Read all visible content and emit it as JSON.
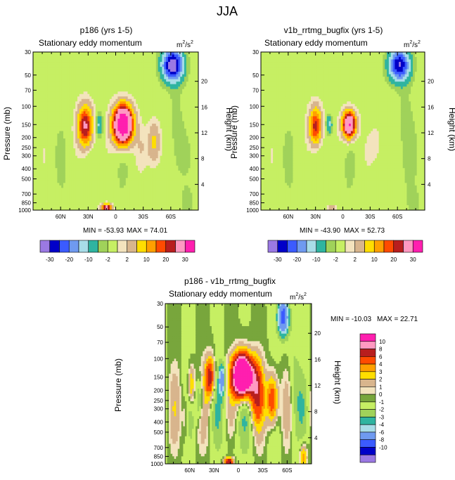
{
  "figure": {
    "title": "JJA"
  },
  "chart_data": [
    {
      "type": "heatmap",
      "title": "p186 (yrs 1-5)",
      "subtitle": "Stationary eddy momentum",
      "units": "m²/s²",
      "units_base": "m",
      "units_exp1": "2",
      "units_mid": "/s",
      "units_exp2": "2",
      "ylabel": "Pressure (mb)",
      "ylabel_right": "Height (km)",
      "xticks": [
        "60N",
        "30N",
        "0",
        "30S",
        "60S"
      ],
      "yticks": [
        "30",
        "50",
        "70",
        "100",
        "150",
        "200",
        "250",
        "300",
        "400",
        "500",
        "700",
        "850",
        "1000"
      ],
      "yticks_right": [
        "20",
        "16",
        "12",
        "8",
        "4"
      ],
      "min_label": "MIN = -53.93",
      "max_label": "MAX = 74.01",
      "colorbar_labels": [
        "-30",
        "-20",
        "-10",
        "-2",
        "2",
        "10",
        "20",
        "30"
      ],
      "features": [
        {
          "lat": -8,
          "p": 150,
          "sx": 7,
          "sy": 0.28,
          "v": 74
        },
        {
          "lat": 33,
          "p": 155,
          "sx": 6,
          "sy": 0.32,
          "v": 32
        },
        {
          "lat": 18,
          "p": 150,
          "sx": 3,
          "sy": 0.18,
          "v": -12
        },
        {
          "lat": -42,
          "p": 230,
          "sx": 5,
          "sy": 0.35,
          "v": 13
        },
        {
          "lat": -28,
          "p": 250,
          "sx": 4,
          "sy": 0.25,
          "v": 3
        },
        {
          "lat": -62,
          "p": 40,
          "sx": 8,
          "sy": 0.25,
          "v": -35
        },
        {
          "lat": -65,
          "p": 200,
          "sx": 6,
          "sy": 0.9,
          "v": -4
        },
        {
          "lat": 50,
          "p": 400,
          "sx": 10,
          "sy": 1.0,
          "v": -1.5
        },
        {
          "lat": 0,
          "p": 500,
          "sx": 12,
          "sy": 0.6,
          "v": -1.2
        },
        {
          "lat": 10,
          "p": 950,
          "sx": 4,
          "sy": 0.06,
          "v": 35
        },
        {
          "lat": -78,
          "p": 850,
          "sx": 4,
          "sy": 0.2,
          "v": -4
        }
      ]
    },
    {
      "type": "heatmap",
      "title": "v1b_rrtmg_bugfix (yrs 1-5)",
      "subtitle": "Stationary eddy momentum",
      "units": "m²/s²",
      "units_base": "m",
      "units_exp1": "2",
      "units_mid": "/s",
      "units_exp2": "2",
      "ylabel": "Pressure (mb)",
      "ylabel_right": "Height (km)",
      "xticks": [
        "60N",
        "30N",
        "0",
        "30S",
        "60S"
      ],
      "yticks": [
        "30",
        "50",
        "70",
        "100",
        "150",
        "200",
        "250",
        "300",
        "400",
        "500",
        "700",
        "850",
        "1000"
      ],
      "yticks_right": [
        "20",
        "16",
        "12",
        "8",
        "4"
      ],
      "min_label": "MIN = -43.90",
      "max_label": "MAX = 52.73",
      "colorbar_labels": [
        "-30",
        "-20",
        "-10",
        "-2",
        "2",
        "10",
        "20",
        "30"
      ],
      "features": [
        {
          "lat": -7,
          "p": 150,
          "sx": 5,
          "sy": 0.2,
          "v": 52
        },
        {
          "lat": 30,
          "p": 155,
          "sx": 5,
          "sy": 0.3,
          "v": 28
        },
        {
          "lat": 15,
          "p": 150,
          "sx": 2.5,
          "sy": 0.15,
          "v": -12
        },
        {
          "lat": -38,
          "p": 230,
          "sx": 5,
          "sy": 0.35,
          "v": 4
        },
        {
          "lat": -62,
          "p": 40,
          "sx": 8,
          "sy": 0.25,
          "v": -30
        },
        {
          "lat": -68,
          "p": 200,
          "sx": 6,
          "sy": 0.9,
          "v": -4
        },
        {
          "lat": 50,
          "p": 400,
          "sx": 10,
          "sy": 1.0,
          "v": -1.5
        },
        {
          "lat": 0,
          "p": 500,
          "sx": 12,
          "sy": 0.6,
          "v": -1.2
        },
        {
          "lat": 12,
          "p": 950,
          "sx": 4,
          "sy": 0.05,
          "v": 8
        },
        {
          "lat": -78,
          "p": 850,
          "sx": 4,
          "sy": 0.2,
          "v": -4
        }
      ]
    },
    {
      "type": "heatmap",
      "title": "p186 - v1b_rrtmg_bugfix",
      "subtitle": "Stationary eddy momentum",
      "units": "m²/s²",
      "units_base": "m",
      "units_exp1": "2",
      "units_mid": "/s",
      "units_exp2": "2",
      "ylabel": "Pressure (mb)",
      "ylabel_right": "Height (km)",
      "xticks": [
        "60N",
        "30N",
        "0",
        "30S",
        "60S"
      ],
      "yticks": [
        "30",
        "50",
        "70",
        "100",
        "150",
        "200",
        "250",
        "300",
        "400",
        "500",
        "700",
        "850",
        "1000"
      ],
      "yticks_right": [
        "20",
        "16",
        "12",
        "8",
        "4"
      ],
      "min_label": "MIN = -10.03",
      "max_label": "MAX = 22.71",
      "colorbar_labels": [
        "10",
        "8",
        "6",
        "4",
        "3",
        "2",
        "1",
        "0",
        "-1",
        "-2",
        "-3",
        "-4",
        "-6",
        "-8",
        "-10"
      ],
      "features": [
        {
          "lat": -5,
          "p": 145,
          "sx": 8,
          "sy": 0.3,
          "v": 22
        },
        {
          "lat": -22,
          "p": 200,
          "sx": 6,
          "sy": 0.45,
          "v": 6
        },
        {
          "lat": 35,
          "p": 150,
          "sx": 4,
          "sy": 0.3,
          "v": 7
        },
        {
          "lat": 20,
          "p": 160,
          "sx": 3,
          "sy": 0.25,
          "v": -5
        },
        {
          "lat": 58,
          "p": 180,
          "sx": 3,
          "sy": 0.3,
          "v": 4
        },
        {
          "lat": 48,
          "p": 250,
          "sx": 3,
          "sy": 0.3,
          "v": -3
        },
        {
          "lat": 65,
          "p": 350,
          "sx": 3,
          "sy": 0.4,
          "v": 2
        },
        {
          "lat": -42,
          "p": 250,
          "sx": 5,
          "sy": 0.4,
          "v": 7
        },
        {
          "lat": -55,
          "p": 40,
          "sx": 5,
          "sy": 0.3,
          "v": -7
        },
        {
          "lat": -68,
          "p": 200,
          "sx": 5,
          "sy": 0.9,
          "v": -1.5
        },
        {
          "lat": 5,
          "p": 500,
          "sx": 15,
          "sy": 0.6,
          "v": -0.8
        },
        {
          "lat": 12,
          "p": 950,
          "sx": 4,
          "sy": 0.06,
          "v": 8
        },
        {
          "lat": -80,
          "p": 850,
          "sx": 3,
          "sy": 0.2,
          "v": 4
        }
      ]
    }
  ],
  "colors": {
    "level_colors": [
      "#9b79e3",
      "#0000c8",
      "#3b5bff",
      "#6f9af0",
      "#a8dde8",
      "#2fb4a0",
      "#a0d25a",
      "#c6ef63",
      "#f3e3bd",
      "#d8b58d",
      "#ffde00",
      "#ffa000",
      "#ff4b00",
      "#b81e1e",
      "#ff99c2",
      "#ff1faf"
    ],
    "diff_colors": [
      "#9b79e3",
      "#0000c8",
      "#3b5bff",
      "#6f9af0",
      "#a8dde8",
      "#2fb4a0",
      "#a0d25a",
      "#c6ef63",
      "#78a63c",
      "#f3e3bd",
      "#d8b58d",
      "#ffde00",
      "#ffa000",
      "#ff4b00",
      "#b81e1e",
      "#ff99c2",
      "#ff1faf"
    ]
  }
}
